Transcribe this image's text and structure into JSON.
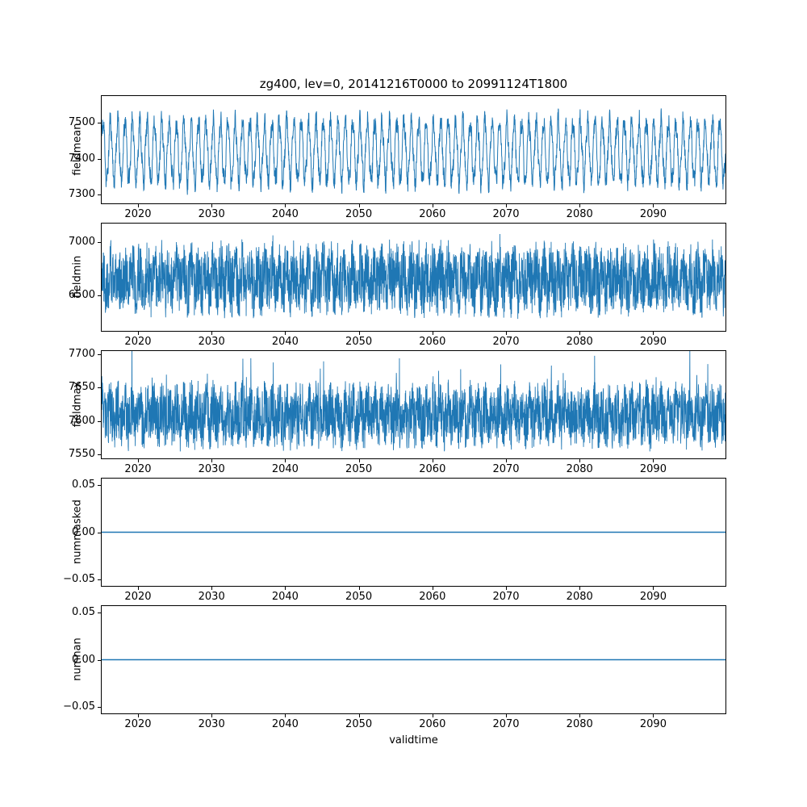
{
  "figure": {
    "title": "zg400, lev=0, 20141216T0000 to 20991124T1800",
    "xlabel": "validtime",
    "line_color": "#1f77b4",
    "axes_color": "#000000",
    "background": "#ffffff"
  },
  "chart_data": [
    {
      "type": "line",
      "ylabel": "fieldmean",
      "xlim": [
        2014.96,
        2099.93
      ],
      "ylim": [
        7272,
        7578
      ],
      "xticks": [
        {
          "v": 2020,
          "label": "2020"
        },
        {
          "v": 2030,
          "label": "2030"
        },
        {
          "v": 2040,
          "label": "2040"
        },
        {
          "v": 2050,
          "label": "2050"
        },
        {
          "v": 2060,
          "label": "2060"
        },
        {
          "v": 2070,
          "label": "2070"
        },
        {
          "v": 2080,
          "label": "2080"
        },
        {
          "v": 2090,
          "label": "2090"
        }
      ],
      "yticks": [
        {
          "v": 7500,
          "label": "7500"
        },
        {
          "v": 7400,
          "label": "7400"
        },
        {
          "v": 7300,
          "label": "7300"
        }
      ],
      "series": {
        "name": "fieldmean",
        "approx_mean": 7420,
        "approx_min": 7280,
        "approx_max": 7555,
        "pattern": "annual oscillation of ~±85 around 7420 with high-frequency noise, 2015-2099",
        "gen": {
          "base": 7420,
          "components": [
            [
              1,
              85
            ],
            [
              0.37,
              15
            ]
          ],
          "noise": 25,
          "seed": 11,
          "n": 3000,
          "lw": 1
        }
      }
    },
    {
      "type": "line",
      "ylabel": "fieldmin",
      "xlim": [
        2014.96,
        2099.93
      ],
      "ylim": [
        6155,
        7180
      ],
      "xticks": [
        {
          "v": 2020,
          "label": "2020"
        },
        {
          "v": 2030,
          "label": "2030"
        },
        {
          "v": 2040,
          "label": "2040"
        },
        {
          "v": 2050,
          "label": "2050"
        },
        {
          "v": 2060,
          "label": "2060"
        },
        {
          "v": 2070,
          "label": "2070"
        },
        {
          "v": 2080,
          "label": "2080"
        },
        {
          "v": 2090,
          "label": "2090"
        }
      ],
      "yticks": [
        {
          "v": 7000,
          "label": "7000"
        },
        {
          "v": 6500,
          "label": "6500"
        }
      ],
      "series": {
        "name": "fieldmin",
        "approx_mean": 6650,
        "approx_min": 6200,
        "approx_max": 7150,
        "pattern": "dense noisy band 6250-7050 with annual modulation and occasional extremes",
        "gen": {
          "base": 6650,
          "components": [
            [
              1,
              90
            ]
          ],
          "noise": 290,
          "seed": 22,
          "n": 3200,
          "lw": 0.9,
          "spike": {
            "prob": 0.02,
            "amp": 110,
            "sign": 0
          }
        }
      }
    },
    {
      "type": "line",
      "ylabel": "fieldmax",
      "xlim": [
        2014.96,
        2099.93
      ],
      "ylim": [
        7543,
        7706
      ],
      "xticks": [
        {
          "v": 2020,
          "label": "2020"
        },
        {
          "v": 2030,
          "label": "2030"
        },
        {
          "v": 2040,
          "label": "2040"
        },
        {
          "v": 2050,
          "label": "2050"
        },
        {
          "v": 2060,
          "label": "2060"
        },
        {
          "v": 2070,
          "label": "2070"
        },
        {
          "v": 2080,
          "label": "2080"
        },
        {
          "v": 2090,
          "label": "2090"
        }
      ],
      "yticks": [
        {
          "v": 7700,
          "label": "7700"
        },
        {
          "v": 7650,
          "label": "7650"
        },
        {
          "v": 7600,
          "label": "7600"
        },
        {
          "v": 7550,
          "label": "7550"
        }
      ],
      "series": {
        "name": "fieldmax",
        "approx_mean": 7610,
        "approx_min": 7548,
        "approx_max": 7710,
        "pattern": "dense noisy band 7560-7660 with upward spikes to ~7700",
        "gen": {
          "base": 7608,
          "components": [
            [
              1,
              13
            ]
          ],
          "noise": 42,
          "seed": 33,
          "n": 3200,
          "lw": 0.9,
          "spike": {
            "prob": 0.018,
            "amp": 60,
            "sign": 1
          }
        }
      }
    },
    {
      "type": "line",
      "ylabel": "nummasked",
      "xlim": [
        2014.96,
        2099.93
      ],
      "ylim": [
        -0.058,
        0.058
      ],
      "xticks": [
        {
          "v": 2020,
          "label": "2020"
        },
        {
          "v": 2030,
          "label": "2030"
        },
        {
          "v": 2040,
          "label": "2040"
        },
        {
          "v": 2050,
          "label": "2050"
        },
        {
          "v": 2060,
          "label": "2060"
        },
        {
          "v": 2070,
          "label": "2070"
        },
        {
          "v": 2080,
          "label": "2080"
        },
        {
          "v": 2090,
          "label": "2090"
        }
      ],
      "yticks": [
        {
          "v": 0.05,
          "label": "0.05"
        },
        {
          "v": 0,
          "label": "0.00"
        },
        {
          "v": -0.05,
          "label": "−0.05"
        }
      ],
      "series": {
        "name": "nummasked",
        "constant_value": 0,
        "approx_mean": 0,
        "approx_min": 0,
        "approx_max": 0,
        "pattern": "constant zero line",
        "gen": {
          "base": 0,
          "components": [],
          "noise": 0,
          "seed": 5,
          "n": 2,
          "lw": 1.6
        }
      }
    },
    {
      "type": "line",
      "ylabel": "numnan",
      "xlim": [
        2014.96,
        2099.93
      ],
      "ylim": [
        -0.058,
        0.058
      ],
      "xticks": [
        {
          "v": 2020,
          "label": "2020"
        },
        {
          "v": 2030,
          "label": "2030"
        },
        {
          "v": 2040,
          "label": "2040"
        },
        {
          "v": 2050,
          "label": "2050"
        },
        {
          "v": 2060,
          "label": "2060"
        },
        {
          "v": 2070,
          "label": "2070"
        },
        {
          "v": 2080,
          "label": "2080"
        },
        {
          "v": 2090,
          "label": "2090"
        }
      ],
      "yticks": [
        {
          "v": 0.05,
          "label": "0.05"
        },
        {
          "v": 0,
          "label": "0.00"
        },
        {
          "v": -0.05,
          "label": "−0.05"
        }
      ],
      "series": {
        "name": "numnan",
        "constant_value": 0,
        "approx_mean": 0,
        "approx_min": 0,
        "approx_max": 0,
        "pattern": "constant zero line",
        "gen": {
          "base": 0,
          "components": [],
          "noise": 0,
          "seed": 6,
          "n": 2,
          "lw": 1.6
        }
      }
    }
  ]
}
